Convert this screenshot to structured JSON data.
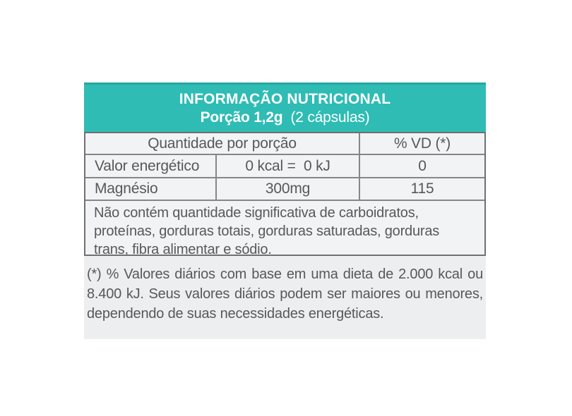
{
  "nutrition_label": {
    "title": "INFORMAÇÃO NUTRICIONAL",
    "portion": {
      "bold": "Porção 1,2g",
      "regular": "(2 cápsulas)"
    },
    "table": {
      "quantity_header": "Quantidade por porção",
      "dv_header": "% VD (*)",
      "rows": [
        {
          "name": "Valor energético",
          "amount": "0 kcal =  0 kJ",
          "dv": "0"
        },
        {
          "name": "Magnésio",
          "amount": "300mg",
          "dv": "115"
        }
      ]
    },
    "note": "Não contém quantidade significativa de carboidratos, proteínas, gorduras totais, gorduras saturadas, gorduras trans, fibra alimentar e sódio.",
    "footnote": "(*) % Valores diários com base em uma dieta de 2.000 kcal ou 8.400 kJ. Seus valores diários podem ser maiores ou menores,  dependendo de suas necessidades energéticas.",
    "colors": {
      "header_teal": "#2ebcb4",
      "header_top_edge": "#28a69f",
      "background_gray": "#edeef0",
      "cell_gray": "#f2f3f5",
      "border_gray": "#85868a",
      "outer_border_gray": "#6f7074",
      "text_gray": "#57585a",
      "page_background": "#ffffff"
    }
  }
}
